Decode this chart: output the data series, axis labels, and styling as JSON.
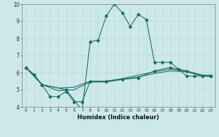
{
  "xlabel": "Humidex (Indice chaleur)",
  "bg_color": "#cce8e8",
  "grid_color": "#b8d4d4",
  "line_color": "#1a6b6b",
  "xlim": [
    -0.5,
    23.5
  ],
  "ylim": [
    4,
    10
  ],
  "yticks": [
    4,
    5,
    6,
    7,
    8,
    9,
    10
  ],
  "xticks": [
    0,
    1,
    2,
    3,
    4,
    5,
    6,
    7,
    8,
    9,
    10,
    11,
    12,
    13,
    14,
    15,
    16,
    17,
    18,
    19,
    20,
    21,
    22,
    23
  ],
  "series": [
    {
      "x": [
        0,
        1,
        2,
        5,
        7,
        8,
        9,
        10,
        11,
        12,
        13,
        14,
        15,
        16,
        17,
        18,
        19,
        20,
        21,
        22,
        23
      ],
      "y": [
        6.3,
        5.9,
        5.3,
        5.0,
        3.8,
        7.8,
        7.9,
        9.3,
        10.0,
        9.5,
        8.7,
        9.4,
        9.1,
        6.6,
        6.6,
        6.6,
        6.2,
        5.8,
        5.8,
        5.8,
        5.8
      ],
      "marker": "D",
      "markersize": 2.5
    },
    {
      "x": [
        0,
        2,
        3,
        4,
        5,
        6,
        7,
        8,
        10,
        12,
        14,
        16,
        18,
        20,
        22,
        23
      ],
      "y": [
        6.3,
        5.3,
        4.6,
        4.6,
        4.9,
        4.3,
        4.3,
        5.5,
        5.5,
        5.6,
        5.7,
        6.1,
        6.3,
        6.1,
        5.8,
        5.8
      ],
      "marker": "D",
      "markersize": 2.5
    },
    {
      "x": [
        0,
        2,
        4,
        6,
        8,
        10,
        12,
        14,
        16,
        18,
        20,
        22,
        23
      ],
      "y": [
        6.3,
        5.3,
        4.95,
        5.0,
        5.45,
        5.45,
        5.6,
        5.75,
        5.95,
        6.1,
        6.05,
        5.8,
        5.8
      ],
      "marker": null,
      "markersize": 0
    },
    {
      "x": [
        0,
        2,
        4,
        6,
        8,
        10,
        12,
        14,
        16,
        18,
        20,
        22,
        23
      ],
      "y": [
        6.3,
        5.3,
        5.1,
        5.15,
        5.5,
        5.5,
        5.65,
        5.85,
        6.05,
        6.2,
        6.1,
        5.85,
        5.85
      ],
      "marker": null,
      "markersize": 0
    }
  ]
}
